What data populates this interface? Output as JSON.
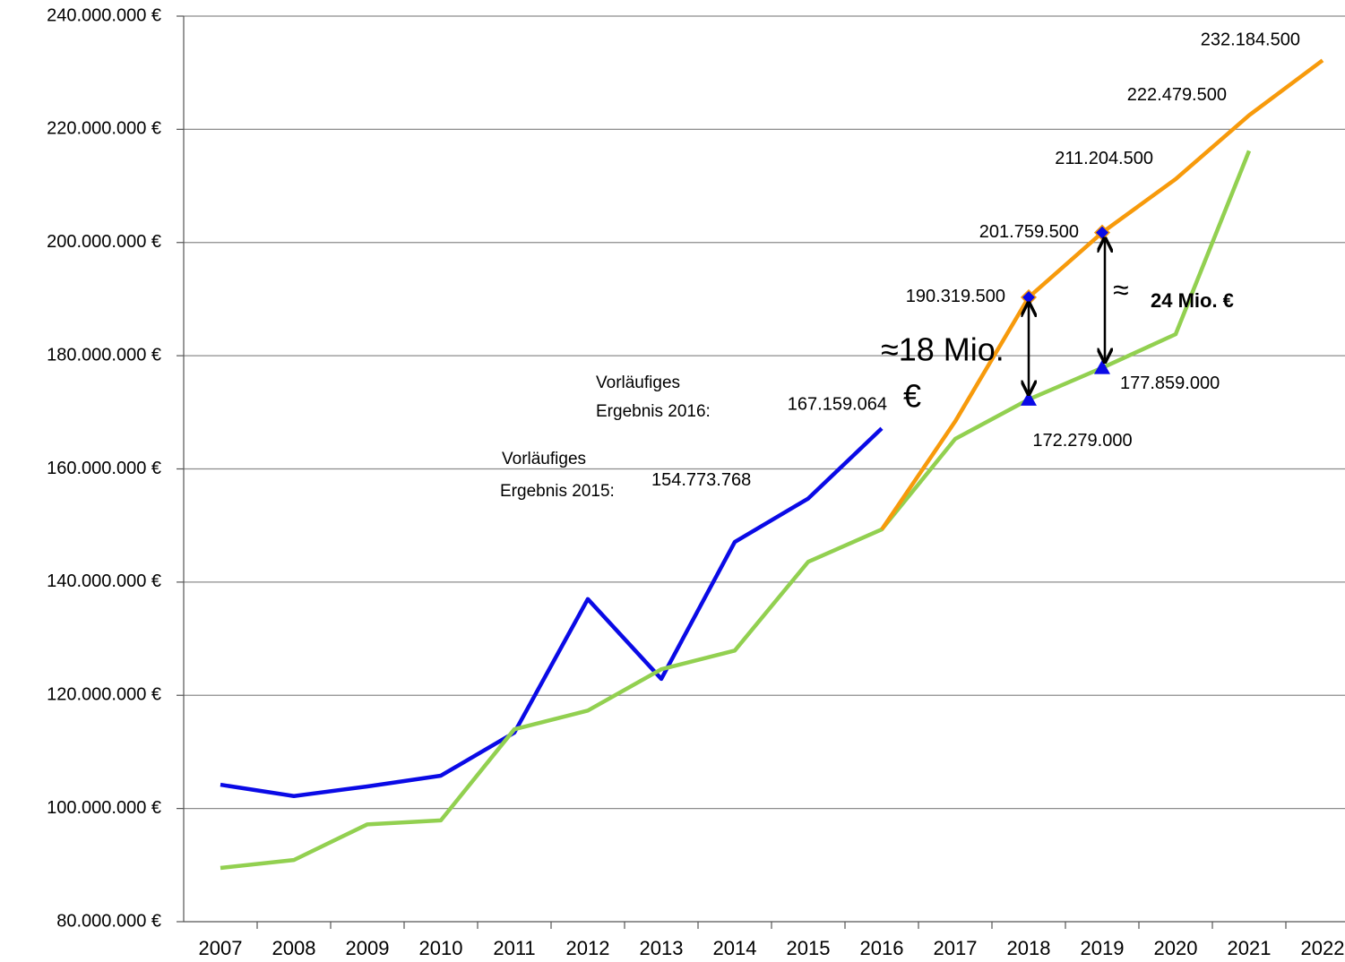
{
  "chart_data": {
    "type": "line",
    "categories": [
      "2007",
      "2008",
      "2009",
      "2010",
      "2011",
      "2012",
      "2013",
      "2014",
      "2015",
      "2016",
      "2017",
      "2018",
      "2019",
      "2020",
      "2021",
      "2022"
    ],
    "ylim": [
      80000000,
      240000000
    ],
    "yticks": [
      {
        "value": 80000000,
        "label": "80.000.000 €"
      },
      {
        "value": 100000000,
        "label": "100.000.000 €"
      },
      {
        "value": 120000000,
        "label": "120.000.000 €"
      },
      {
        "value": 140000000,
        "label": "140.000.000 €"
      },
      {
        "value": 160000000,
        "label": "160.000.000 €"
      },
      {
        "value": 180000000,
        "label": "180.000.000 €"
      },
      {
        "value": 200000000,
        "label": "200.000.000 €"
      },
      {
        "value": 220000000,
        "label": "220.000.000 €"
      },
      {
        "value": 240000000,
        "label": "240.000.000 €"
      }
    ],
    "grid": true,
    "series": [
      {
        "color": "#0a0ae6",
        "values": [
          104200000,
          102200000,
          103900000,
          105800000,
          113400000,
          137000000,
          122900000,
          147100000,
          154773768,
          167159064,
          null,
          null,
          null,
          null,
          null,
          null
        ],
        "value_labels": [
          null,
          null,
          null,
          null,
          null,
          null,
          null,
          null,
          "154.773.768",
          "167.159.064",
          null,
          null,
          null,
          null,
          null,
          null
        ]
      },
      {
        "color": "#92d050",
        "values": [
          89500000,
          90900000,
          97200000,
          97900000,
          114000000,
          117300000,
          124600000,
          127900000,
          143600000,
          149300000,
          165300000,
          172279000,
          177859000,
          183800000,
          216200000,
          null
        ],
        "value_labels": [
          null,
          null,
          null,
          null,
          null,
          null,
          null,
          null,
          null,
          null,
          null,
          "172.279.000",
          "177.859.000",
          null,
          null,
          null
        ],
        "marker": "triangle",
        "marked": [
          11,
          12
        ]
      },
      {
        "color": "#f79a0b",
        "values": [
          null,
          null,
          null,
          null,
          null,
          null,
          null,
          null,
          null,
          149300000,
          168400000,
          190319500,
          201759500,
          211204500,
          222479500,
          232184500
        ],
        "value_labels": [
          null,
          null,
          null,
          null,
          null,
          null,
          null,
          null,
          null,
          null,
          null,
          "190.319.500",
          "201.759.500",
          "211.204.500",
          "222.479.500",
          "232.184.500"
        ],
        "marker": "diamond",
        "marked": [
          11,
          12
        ]
      }
    ],
    "annotations": [
      "Vorläufiges",
      "Ergebnis 2015:",
      "Vorläufiges",
      "Ergebnis 2016:",
      "≈18 Mio.",
      "€",
      "≈",
      "24 Mio. €"
    ]
  }
}
